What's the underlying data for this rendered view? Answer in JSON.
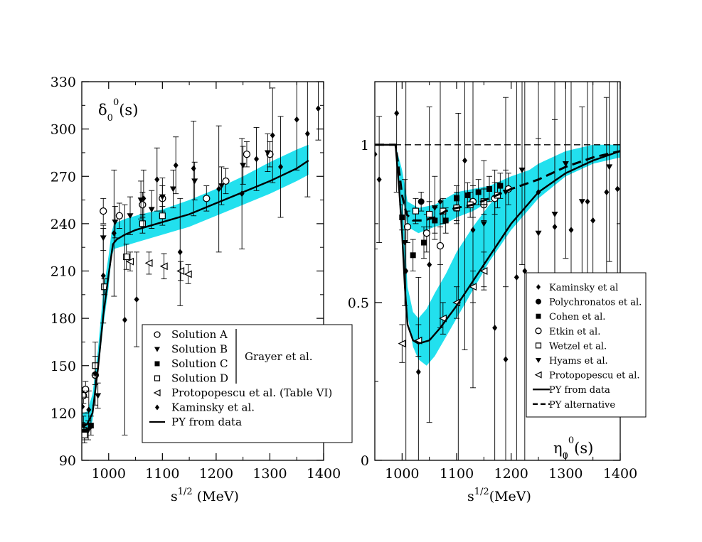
{
  "chart_data": [
    {
      "type": "scatter",
      "panel": "left",
      "title_main": "δ",
      "title_sub": "0",
      "title_sup": "0",
      "title_tail": "(s)",
      "xlabel_main": "s",
      "xlabel_sup": "1/2",
      "xlabel_tail": " (MeV)",
      "xlim": [
        950,
        1400
      ],
      "ylim": [
        90,
        330
      ],
      "xticks": [
        1000,
        1100,
        1200,
        1300,
        1400
      ],
      "yticks": [
        90,
        120,
        150,
        180,
        210,
        240,
        270,
        300,
        330
      ],
      "legend_group_label": "Grayer et al.",
      "band": {
        "x": [
          952,
          960,
          970,
          980,
          990,
          1000,
          1005,
          1010,
          1030,
          1060,
          1100,
          1150,
          1200,
          1250,
          1300,
          1350,
          1372
        ],
        "lower": [
          104,
          106,
          115,
          145,
          175,
          200,
          218,
          224,
          226,
          229,
          233,
          238,
          245,
          252,
          259,
          267,
          271
        ],
        "upper": [
          120,
          121,
          132,
          160,
          197,
          220,
          234,
          240,
          243,
          246,
          249,
          255,
          262,
          270,
          279,
          287,
          290
        ]
      },
      "curve": {
        "name": "PY from data",
        "x": [
          952,
          960,
          970,
          980,
          990,
          1000,
          1008,
          1015,
          1030,
          1050,
          1070,
          1100,
          1150,
          1200,
          1250,
          1300,
          1350,
          1372
        ],
        "y": [
          111,
          113,
          120,
          148,
          182,
          208,
          227,
          230,
          233,
          236,
          238,
          241,
          246,
          253,
          260,
          267,
          275,
          280
        ]
      },
      "series": [
        {
          "name": "Solution A",
          "marker": "open-circle",
          "x": [
            953,
            957,
            975,
            990,
            1020,
            1063,
            1100,
            1182,
            1218,
            1257,
            1300
          ],
          "y": [
            131,
            135,
            144,
            248,
            245,
            252,
            256,
            256,
            267,
            284,
            284
          ],
          "err": [
            5,
            5,
            6,
            8,
            8,
            8,
            8,
            8,
            8,
            8,
            8
          ]
        },
        {
          "name": "Solution B",
          "marker": "filled-down-triangle",
          "x": [
            953,
            962,
            980,
            990,
            1012,
            1040,
            1060,
            1080,
            1100,
            1120,
            1160,
            1210,
            1250,
            1296
          ],
          "y": [
            112,
            109,
            131,
            231,
            241,
            245,
            255,
            249,
            257,
            262,
            267,
            264,
            277,
            285
          ],
          "err": [
            6,
            6,
            8,
            8,
            10,
            12,
            12,
            12,
            12,
            12,
            12,
            12,
            12,
            12
          ]
        },
        {
          "name": "Solution C",
          "marker": "filled-square",
          "x": [
            955,
            967,
            992
          ],
          "y": [
            108,
            112,
            200
          ],
          "err": [
            5,
            6,
            5
          ]
        },
        {
          "name": "Solution D",
          "marker": "open-square",
          "x": [
            955,
            975,
            992,
            1033,
            1063,
            1100
          ],
          "y": [
            106,
            150,
            200,
            219,
            240,
            245
          ],
          "err": [
            5,
            6,
            5,
            8,
            6,
            6
          ]
        },
        {
          "name": "Protopopescu et al.  (Table VI)",
          "marker": "open-left-triangle",
          "x": [
            1040,
            1075,
            1103,
            1134,
            1148
          ],
          "y": [
            216,
            215,
            213,
            210,
            208
          ],
          "err": [
            6,
            7,
            8,
            6,
            6
          ]
        },
        {
          "name": "Kaminsky et al.",
          "marker": "filled-diamond",
          "x": [
            951,
            963,
            975,
            990,
            1010,
            1030,
            1052,
            1065,
            1090,
            1125,
            1133,
            1158,
            1205,
            1248,
            1275,
            1305,
            1320,
            1350,
            1370,
            1390
          ],
          "y": [
            124,
            122,
            145,
            207,
            234,
            179,
            192,
            256,
            268,
            277,
            222,
            275,
            262,
            259,
            281,
            296,
            276,
            306,
            297,
            313
          ],
          "err": [
            10,
            12,
            20,
            30,
            40,
            73,
            30,
            18,
            20,
            18,
            34,
            30,
            40,
            35,
            20,
            30,
            32,
            32,
            40,
            20
          ]
        }
      ]
    },
    {
      "type": "line",
      "panel": "right",
      "title_main": "η",
      "title_sub": "0",
      "title_sup": "0",
      "title_tail": "(s)",
      "xlabel_main": "s",
      "xlabel_sup": "1/2",
      "xlabel_tail": "(MeV)",
      "xlim": [
        950,
        1400
      ],
      "ylim": [
        0,
        1.2
      ],
      "xticks": [
        1000,
        1100,
        1200,
        1300,
        1400
      ],
      "yticks": [
        0,
        0.5,
        1
      ],
      "yticklabels": [
        "0",
        "0.5",
        "1"
      ],
      "reference_line": 1.0,
      "band_main": {
        "x": [
          988,
          1000,
          1010,
          1020,
          1030,
          1045,
          1060,
          1080,
          1100,
          1130,
          1160,
          1200,
          1250,
          1300,
          1350,
          1400
        ],
        "lower": [
          1.0,
          0.75,
          0.46,
          0.36,
          0.32,
          0.3,
          0.33,
          0.39,
          0.45,
          0.54,
          0.63,
          0.73,
          0.83,
          0.9,
          0.94,
          0.96
        ],
        "upper": [
          1.0,
          0.85,
          0.55,
          0.47,
          0.45,
          0.48,
          0.53,
          0.59,
          0.66,
          0.74,
          0.81,
          0.88,
          0.94,
          0.98,
          1.0,
          1.0
        ]
      },
      "band_alt": {
        "x": [
          988,
          1000,
          1010,
          1030,
          1060,
          1080,
          1100,
          1130,
          1160,
          1200,
          1250,
          1300,
          1350,
          1400
        ],
        "lower": [
          1.0,
          0.85,
          0.74,
          0.72,
          0.74,
          0.75,
          0.77,
          0.79,
          0.82,
          0.86,
          0.89,
          0.92,
          0.95,
          0.96
        ],
        "upper": [
          1.0,
          0.92,
          0.82,
          0.8,
          0.81,
          0.83,
          0.85,
          0.86,
          0.87,
          0.9,
          0.93,
          0.96,
          0.99,
          1.0
        ]
      },
      "curves": [
        {
          "name": "PY from data",
          "style": "solid",
          "x": [
            950,
            988,
            995,
            1000,
            1005,
            1010,
            1020,
            1030,
            1050,
            1070,
            1100,
            1150,
            1200,
            1250,
            1300,
            1350,
            1400
          ],
          "y": [
            1.0,
            1.0,
            0.85,
            0.72,
            0.55,
            0.43,
            0.38,
            0.37,
            0.38,
            0.42,
            0.49,
            0.62,
            0.75,
            0.85,
            0.91,
            0.95,
            0.98
          ]
        },
        {
          "name": "PY alternative",
          "style": "dashed",
          "x": [
            950,
            988,
            995,
            1000,
            1008,
            1020,
            1040,
            1060,
            1080,
            1100,
            1130,
            1160,
            1200,
            1250,
            1300,
            1350,
            1400
          ],
          "y": [
            1.0,
            1.0,
            0.91,
            0.84,
            0.78,
            0.76,
            0.76,
            0.77,
            0.79,
            0.8,
            0.81,
            0.83,
            0.86,
            0.89,
            0.93,
            0.96,
            0.98
          ]
        }
      ],
      "series": [
        {
          "name": "Kaminsky et al",
          "marker": "filled-diamond",
          "x": [
            950,
            958,
            990,
            1007,
            1030,
            1050,
            1070,
            1103,
            1115,
            1130,
            1170,
            1190,
            1210,
            1225,
            1250,
            1280,
            1310,
            1340,
            1350,
            1375,
            1395
          ],
          "y": [
            0.97,
            0.89,
            1.1,
            0.6,
            0.28,
            0.62,
            0.82,
            0.5,
            0.95,
            0.73,
            0.42,
            0.32,
            0.58,
            0.6,
            0.85,
            0.74,
            0.73,
            0.82,
            0.76,
            0.85,
            0.86
          ],
          "err": [
            0.3,
            0.2,
            0.25,
            0.6,
            0.3,
            0.5,
            0.4,
            0.6,
            0.6,
            0.5,
            0.5,
            0.6,
            0.7,
            0.6,
            0.5,
            0.5,
            0.5,
            0.4,
            0.5,
            0.3,
            0.4
          ]
        },
        {
          "name": "Polychronatos et al.",
          "marker": "filled-circle",
          "x": [
            1035
          ],
          "y": [
            0.82
          ],
          "err": [
            0.03
          ]
        },
        {
          "name": "Cohen et al.",
          "marker": "filled-square",
          "x": [
            1000,
            1020,
            1040,
            1060,
            1080,
            1100,
            1120,
            1140,
            1160,
            1180
          ],
          "y": [
            0.77,
            0.65,
            0.69,
            0.76,
            0.76,
            0.83,
            0.84,
            0.85,
            0.86,
            0.87
          ],
          "err": [
            0.04,
            0.05,
            0.05,
            0.04,
            0.04,
            0.04,
            0.04,
            0.04,
            0.04,
            0.04
          ]
        },
        {
          "name": "Etkin et al.",
          "marker": "open-circle",
          "x": [
            1010,
            1045,
            1070,
            1100,
            1130,
            1150,
            1170,
            1195
          ],
          "y": [
            0.74,
            0.72,
            0.68,
            0.8,
            0.82,
            0.81,
            0.83,
            0.86
          ],
          "err": [
            0.05,
            0.06,
            0.06,
            0.05,
            0.05,
            0.05,
            0.05,
            0.05
          ]
        },
        {
          "name": "Wetzel et al.",
          "marker": "open-square",
          "x": [
            1025,
            1050,
            1075,
            1100,
            1125,
            1150,
            1175
          ],
          "y": [
            0.79,
            0.78,
            0.79,
            0.8,
            0.81,
            0.82,
            0.84
          ],
          "err": [
            0.04,
            0.04,
            0.04,
            0.04,
            0.04,
            0.04,
            0.04
          ]
        },
        {
          "name": "Hyams et al.",
          "marker": "filled-down-triangle",
          "x": [
            1005,
            1060,
            1150,
            1190,
            1220,
            1250,
            1280,
            1300,
            1330,
            1380
          ],
          "y": [
            0.69,
            0.8,
            0.75,
            0.85,
            0.92,
            0.72,
            0.78,
            0.94,
            0.82,
            0.93
          ],
          "err": [
            0.2,
            0.1,
            0.2,
            0.3,
            0.3,
            0.3,
            0.3,
            0.3,
            0.3,
            0.3
          ]
        },
        {
          "name": "Protopopescu et al.",
          "marker": "open-left-triangle",
          "x": [
            1000,
            1030,
            1075,
            1100,
            1130,
            1150
          ],
          "y": [
            0.37,
            0.38,
            0.45,
            0.5,
            0.55,
            0.6
          ],
          "err": [
            0.06,
            0.05,
            0.05,
            0.05,
            0.05,
            0.06
          ]
        }
      ]
    }
  ],
  "colors": {
    "band": "#22e0ee",
    "ink": "#000000",
    "background": "#ffffff"
  }
}
